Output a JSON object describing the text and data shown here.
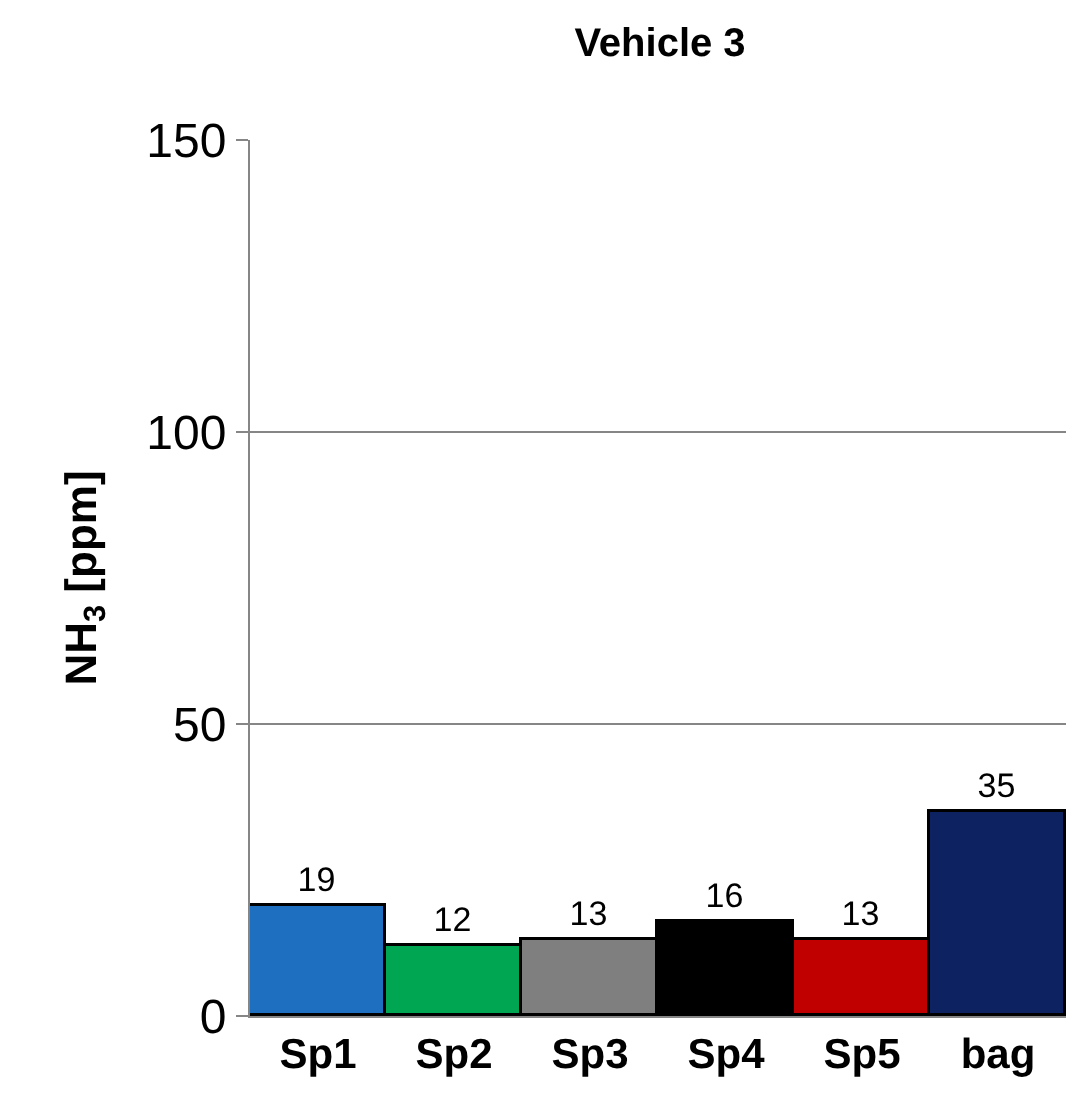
{
  "chart_data": {
    "type": "bar",
    "title": "Vehicle 3",
    "ylabel": "NH$_{3}$ [ppm]",
    "categories": [
      "Sp1",
      "Sp2",
      "Sp3",
      "Sp4",
      "Sp5",
      "bag"
    ],
    "values": [
      19,
      12,
      13,
      16,
      13,
      35
    ],
    "colors": [
      "#1f6fc1",
      "#00a651",
      "#7f7f7f",
      "#000000",
      "#c00000",
      "#0d2361"
    ],
    "ylim": [
      0,
      150
    ],
    "yticks": [
      0,
      50,
      100,
      150
    ],
    "grid": "y",
    "data_labels": true
  }
}
